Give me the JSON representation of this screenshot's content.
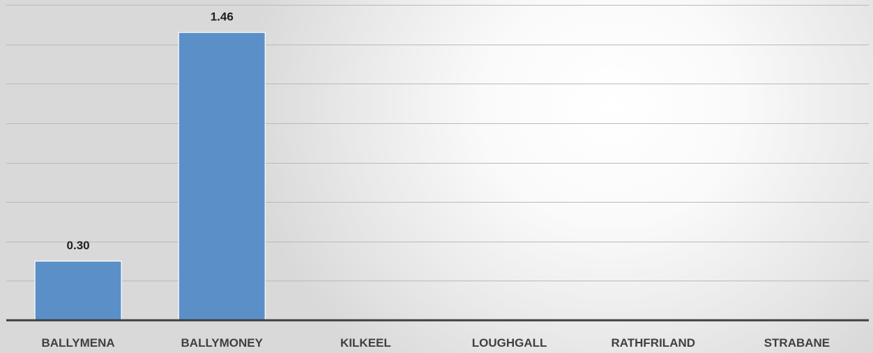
{
  "chart_data": {
    "type": "bar",
    "categories": [
      "BALLYMENA",
      "BALLYMONEY",
      "KILKEEL",
      "LOUGHGALL",
      "RATHFRILAND",
      "STRABANE"
    ],
    "values": [
      0.3,
      1.46,
      null,
      null,
      null,
      null
    ],
    "data_labels": [
      "0.30",
      "1.46",
      "",
      "",
      "",
      ""
    ],
    "ylim": [
      0,
      1.6
    ],
    "gridline_step": 0.2,
    "grid": true,
    "legend": "none",
    "colors": {
      "bar": "#5b8fc8",
      "gridline": "#b9b9b9",
      "axis": "#3f3f3f"
    }
  }
}
